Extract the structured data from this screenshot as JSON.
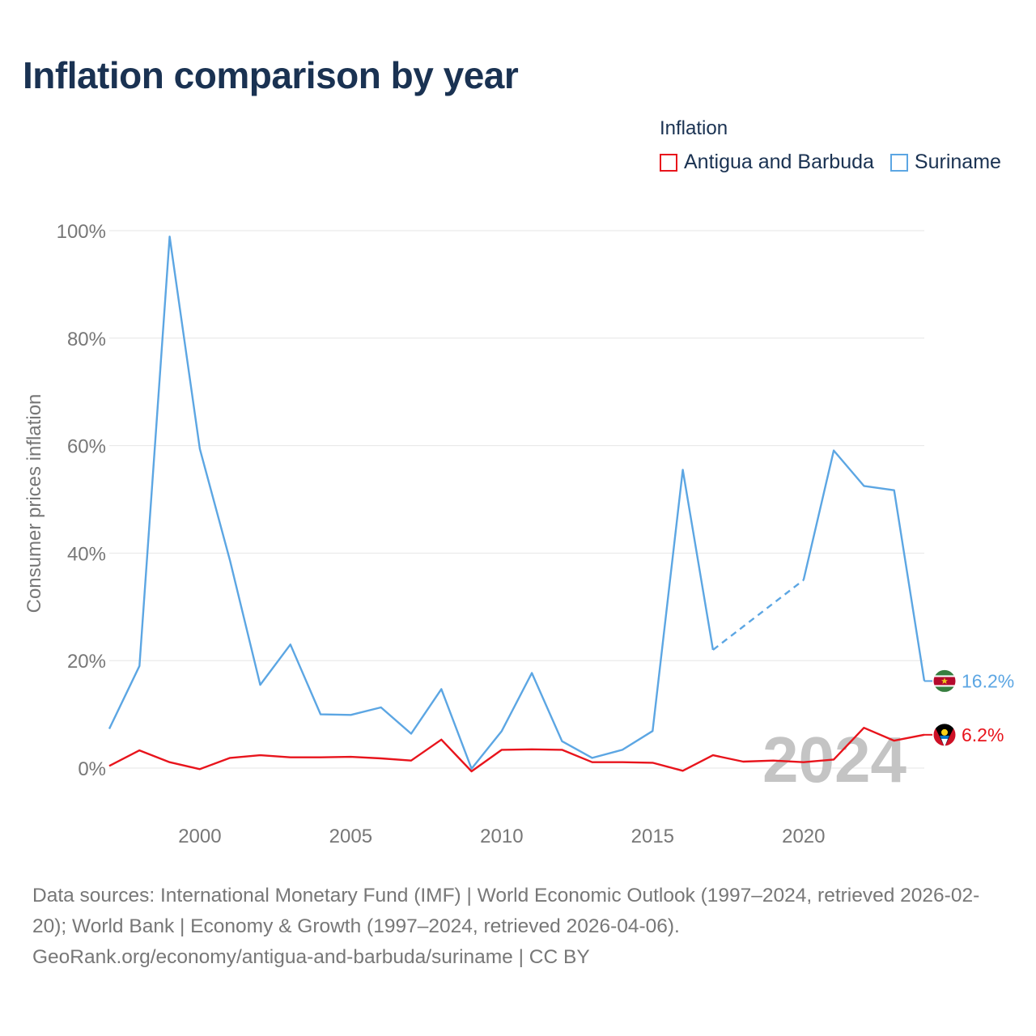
{
  "title": "Inflation comparison by year",
  "legend": {
    "title": "Inflation",
    "items": [
      {
        "label": "Antigua and Barbuda",
        "color": "#e8141c"
      },
      {
        "label": "Suriname",
        "color": "#5ca6e3"
      }
    ]
  },
  "chart_data": {
    "type": "line",
    "title": "Inflation comparison by year",
    "xlabel": "",
    "ylabel": "Consumer prices inflation",
    "xlim": [
      1997,
      2024
    ],
    "ylim": [
      -8,
      100
    ],
    "x_ticks": [
      2000,
      2005,
      2010,
      2015,
      2020
    ],
    "y_ticks": [
      0,
      20,
      40,
      60,
      80,
      100
    ],
    "y_tick_labels": [
      "0%",
      "20%",
      "40%",
      "60%",
      "80%",
      "100%"
    ],
    "grid": true,
    "year_watermark": "2024",
    "series": [
      {
        "name": "Antigua and Barbuda",
        "color": "#e8141c",
        "end_label": "6.2%",
        "x": [
          1997,
          1998,
          1999,
          2000,
          2001,
          2002,
          2003,
          2004,
          2005,
          2006,
          2007,
          2008,
          2009,
          2010,
          2011,
          2012,
          2013,
          2014,
          2015,
          2016,
          2017,
          2018,
          2019,
          2020,
          2021,
          2022,
          2023,
          2024
        ],
        "values": [
          0.4,
          3.3,
          1.1,
          -0.2,
          1.9,
          2.4,
          2.0,
          2.0,
          2.1,
          1.8,
          1.4,
          5.3,
          -0.6,
          3.4,
          3.5,
          3.4,
          1.1,
          1.1,
          1.0,
          -0.5,
          2.4,
          1.2,
          1.4,
          1.1,
          1.6,
          7.5,
          5.1,
          6.2
        ]
      },
      {
        "name": "Suriname",
        "color": "#5ca6e3",
        "end_label": "16.2%",
        "gap_years": [
          2018,
          2019
        ],
        "x": [
          1997,
          1998,
          1999,
          2000,
          2001,
          2002,
          2003,
          2004,
          2005,
          2006,
          2007,
          2008,
          2009,
          2010,
          2011,
          2012,
          2013,
          2014,
          2015,
          2016,
          2017,
          2018,
          2019,
          2020,
          2021,
          2022,
          2023,
          2024
        ],
        "values": [
          7.3,
          19.0,
          98.9,
          59.4,
          38.6,
          15.5,
          23.0,
          10.0,
          9.9,
          11.3,
          6.4,
          14.7,
          -0.1,
          6.9,
          17.7,
          5.0,
          1.9,
          3.4,
          6.9,
          55.5,
          22.0,
          null,
          null,
          35.0,
          59.1,
          52.5,
          51.7,
          16.2
        ]
      }
    ]
  },
  "footer": {
    "sources": "Data sources: International Monetary Fund (IMF) | World Economic Outlook (1997–2024, retrieved 2026-02-20); World Bank | Economy & Growth (1997–2024, retrieved 2026-04-06).",
    "credit": "GeoRank.org/economy/antigua-and-barbuda/suriname | CC BY"
  }
}
